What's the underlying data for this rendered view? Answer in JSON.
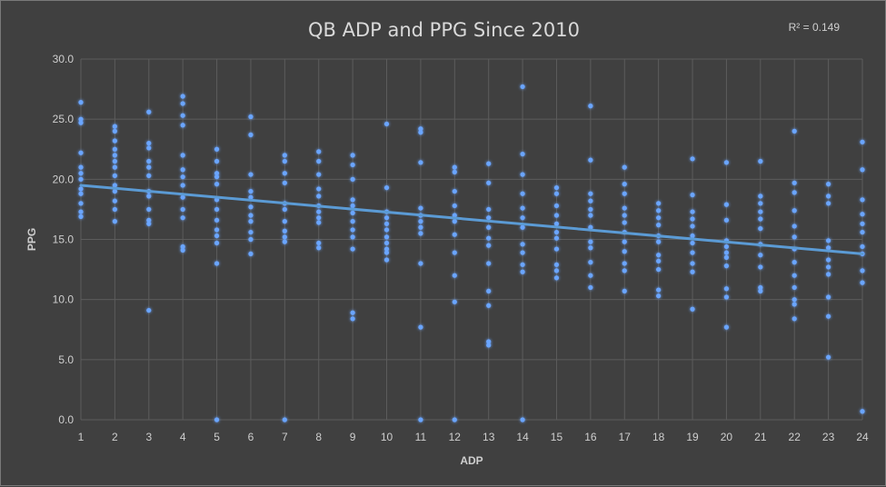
{
  "chart_data": {
    "type": "scatter",
    "title": "QB ADP and PPG Since 2010",
    "annotation": "R² = 0.149",
    "xlabel": "ADP",
    "ylabel": "PPG",
    "xlim": [
      1,
      24
    ],
    "ylim": [
      0,
      30
    ],
    "x_ticks": [
      "1",
      "2",
      "3",
      "4",
      "5",
      "6",
      "7",
      "8",
      "9",
      "10",
      "11",
      "12",
      "13",
      "14",
      "15",
      "16",
      "17",
      "18",
      "19",
      "20",
      "21",
      "22",
      "23",
      "24"
    ],
    "y_ticks": [
      "0.0",
      "5.0",
      "10.0",
      "15.0",
      "20.0",
      "25.0",
      "30.0"
    ],
    "grid": true,
    "trendline": {
      "x": [
        1,
        24
      ],
      "y": [
        19.5,
        13.8
      ]
    },
    "series": [
      {
        "color": "#6aa5ff",
        "points": [
          [
            1,
            26.4
          ],
          [
            1,
            25.0
          ],
          [
            1,
            24.7
          ],
          [
            1,
            22.2
          ],
          [
            1,
            21.0
          ],
          [
            1,
            20.5
          ],
          [
            1,
            20.0
          ],
          [
            1,
            19.2
          ],
          [
            1,
            18.8
          ],
          [
            1,
            18.0
          ],
          [
            1,
            17.3
          ],
          [
            1,
            16.9
          ],
          [
            2,
            24.4
          ],
          [
            2,
            24.0
          ],
          [
            2,
            23.2
          ],
          [
            2,
            22.5
          ],
          [
            2,
            22.0
          ],
          [
            2,
            21.5
          ],
          [
            2,
            21.0
          ],
          [
            2,
            20.3
          ],
          [
            2,
            19.5
          ],
          [
            2,
            19.0
          ],
          [
            2,
            18.2
          ],
          [
            2,
            17.5
          ],
          [
            2,
            16.5
          ],
          [
            3,
            25.6
          ],
          [
            3,
            23.0
          ],
          [
            3,
            22.6
          ],
          [
            3,
            21.5
          ],
          [
            3,
            21.0
          ],
          [
            3,
            20.3
          ],
          [
            3,
            19.0
          ],
          [
            3,
            18.6
          ],
          [
            3,
            17.5
          ],
          [
            3,
            16.6
          ],
          [
            3,
            16.3
          ],
          [
            3,
            9.1
          ],
          [
            4,
            26.9
          ],
          [
            4,
            26.3
          ],
          [
            4,
            25.3
          ],
          [
            4,
            24.5
          ],
          [
            4,
            22.0
          ],
          [
            4,
            20.8
          ],
          [
            4,
            20.2
          ],
          [
            4,
            19.5
          ],
          [
            4,
            18.5
          ],
          [
            4,
            17.5
          ],
          [
            4,
            16.8
          ],
          [
            4,
            14.4
          ],
          [
            4,
            14.1
          ],
          [
            5,
            22.5
          ],
          [
            5,
            21.5
          ],
          [
            5,
            20.5
          ],
          [
            5,
            20.2
          ],
          [
            5,
            19.6
          ],
          [
            5,
            18.3
          ],
          [
            5,
            17.5
          ],
          [
            5,
            16.6
          ],
          [
            5,
            15.8
          ],
          [
            5,
            15.3
          ],
          [
            5,
            14.7
          ],
          [
            5,
            13.0
          ],
          [
            5,
            0.0
          ],
          [
            6,
            25.2
          ],
          [
            6,
            23.7
          ],
          [
            6,
            20.4
          ],
          [
            6,
            19.0
          ],
          [
            6,
            18.5
          ],
          [
            6,
            17.7
          ],
          [
            6,
            17.0
          ],
          [
            6,
            16.5
          ],
          [
            6,
            15.6
          ],
          [
            6,
            15.0
          ],
          [
            6,
            13.8
          ],
          [
            7,
            22.0
          ],
          [
            7,
            21.5
          ],
          [
            7,
            20.5
          ],
          [
            7,
            19.7
          ],
          [
            7,
            18.0
          ],
          [
            7,
            17.5
          ],
          [
            7,
            16.5
          ],
          [
            7,
            15.7
          ],
          [
            7,
            15.2
          ],
          [
            7,
            14.8
          ],
          [
            7,
            0.0
          ],
          [
            8,
            22.3
          ],
          [
            8,
            21.5
          ],
          [
            8,
            20.4
          ],
          [
            8,
            19.2
          ],
          [
            8,
            18.6
          ],
          [
            8,
            17.8
          ],
          [
            8,
            17.3
          ],
          [
            8,
            16.8
          ],
          [
            8,
            16.4
          ],
          [
            8,
            14.7
          ],
          [
            8,
            14.3
          ],
          [
            9,
            22.0
          ],
          [
            9,
            21.2
          ],
          [
            9,
            20.0
          ],
          [
            9,
            18.3
          ],
          [
            9,
            17.8
          ],
          [
            9,
            17.2
          ],
          [
            9,
            16.5
          ],
          [
            9,
            15.8
          ],
          [
            9,
            15.2
          ],
          [
            9,
            14.2
          ],
          [
            9,
            8.9
          ],
          [
            9,
            8.4
          ],
          [
            10,
            24.6
          ],
          [
            10,
            19.3
          ],
          [
            10,
            17.3
          ],
          [
            10,
            16.8
          ],
          [
            10,
            16.3
          ],
          [
            10,
            15.8
          ],
          [
            10,
            15.2
          ],
          [
            10,
            14.7
          ],
          [
            10,
            14.2
          ],
          [
            10,
            13.9
          ],
          [
            10,
            13.3
          ],
          [
            11,
            24.2
          ],
          [
            11,
            23.9
          ],
          [
            11,
            21.4
          ],
          [
            11,
            17.6
          ],
          [
            11,
            17.0
          ],
          [
            11,
            16.5
          ],
          [
            11,
            16.0
          ],
          [
            11,
            15.5
          ],
          [
            11,
            13.0
          ],
          [
            11,
            7.7
          ],
          [
            11,
            0.0
          ],
          [
            12,
            21.0
          ],
          [
            12,
            20.6
          ],
          [
            12,
            19.0
          ],
          [
            12,
            17.8
          ],
          [
            12,
            17.0
          ],
          [
            12,
            16.5
          ],
          [
            12,
            15.4
          ],
          [
            12,
            13.9
          ],
          [
            12,
            12.0
          ],
          [
            12,
            9.8
          ],
          [
            12,
            0.0
          ],
          [
            13,
            21.3
          ],
          [
            13,
            19.7
          ],
          [
            13,
            17.5
          ],
          [
            13,
            16.8
          ],
          [
            13,
            16.0
          ],
          [
            13,
            15.1
          ],
          [
            13,
            14.5
          ],
          [
            13,
            13.0
          ],
          [
            13,
            10.7
          ],
          [
            13,
            9.5
          ],
          [
            13,
            6.5
          ],
          [
            13,
            6.2
          ],
          [
            14,
            27.7
          ],
          [
            14,
            22.1
          ],
          [
            14,
            20.4
          ],
          [
            14,
            18.8
          ],
          [
            14,
            17.6
          ],
          [
            14,
            16.8
          ],
          [
            14,
            16.0
          ],
          [
            14,
            14.6
          ],
          [
            14,
            13.9
          ],
          [
            14,
            12.9
          ],
          [
            14,
            12.3
          ],
          [
            14,
            0.0
          ],
          [
            15,
            19.3
          ],
          [
            15,
            18.8
          ],
          [
            15,
            17.8
          ],
          [
            15,
            17.0
          ],
          [
            15,
            16.3
          ],
          [
            15,
            15.6
          ],
          [
            15,
            15.1
          ],
          [
            15,
            14.2
          ],
          [
            15,
            12.9
          ],
          [
            15,
            12.4
          ],
          [
            15,
            11.8
          ],
          [
            16,
            26.1
          ],
          [
            16,
            21.6
          ],
          [
            16,
            18.8
          ],
          [
            16,
            18.2
          ],
          [
            16,
            17.5
          ],
          [
            16,
            17.0
          ],
          [
            16,
            16.0
          ],
          [
            16,
            14.8
          ],
          [
            16,
            14.3
          ],
          [
            16,
            13.1
          ],
          [
            16,
            12.0
          ],
          [
            16,
            11.0
          ],
          [
            17,
            21.0
          ],
          [
            17,
            19.6
          ],
          [
            17,
            18.8
          ],
          [
            17,
            17.6
          ],
          [
            17,
            17.0
          ],
          [
            17,
            16.4
          ],
          [
            17,
            15.6
          ],
          [
            17,
            14.8
          ],
          [
            17,
            14.0
          ],
          [
            17,
            13.0
          ],
          [
            17,
            12.4
          ],
          [
            17,
            10.7
          ],
          [
            18,
            18.0
          ],
          [
            18,
            17.4
          ],
          [
            18,
            16.8
          ],
          [
            18,
            16.2
          ],
          [
            18,
            15.3
          ],
          [
            18,
            14.8
          ],
          [
            18,
            13.7
          ],
          [
            18,
            13.2
          ],
          [
            18,
            12.5
          ],
          [
            18,
            10.8
          ],
          [
            18,
            10.3
          ],
          [
            19,
            21.7
          ],
          [
            19,
            18.7
          ],
          [
            19,
            17.3
          ],
          [
            19,
            16.7
          ],
          [
            19,
            16.1
          ],
          [
            19,
            15.3
          ],
          [
            19,
            14.7
          ],
          [
            19,
            13.9
          ],
          [
            19,
            13.0
          ],
          [
            19,
            12.3
          ],
          [
            19,
            9.2
          ],
          [
            20,
            21.4
          ],
          [
            20,
            17.9
          ],
          [
            20,
            16.6
          ],
          [
            20,
            14.9
          ],
          [
            20,
            14.4
          ],
          [
            20,
            13.9
          ],
          [
            20,
            13.5
          ],
          [
            20,
            12.8
          ],
          [
            20,
            10.9
          ],
          [
            20,
            10.2
          ],
          [
            20,
            7.7
          ],
          [
            21,
            21.5
          ],
          [
            21,
            18.6
          ],
          [
            21,
            18.0
          ],
          [
            21,
            17.3
          ],
          [
            21,
            16.7
          ],
          [
            21,
            15.9
          ],
          [
            21,
            14.6
          ],
          [
            21,
            13.7
          ],
          [
            21,
            12.7
          ],
          [
            21,
            11.0
          ],
          [
            21,
            10.7
          ],
          [
            22,
            24.0
          ],
          [
            22,
            19.7
          ],
          [
            22,
            18.9
          ],
          [
            22,
            17.4
          ],
          [
            22,
            16.1
          ],
          [
            22,
            15.2
          ],
          [
            22,
            14.2
          ],
          [
            22,
            13.1
          ],
          [
            22,
            12.0
          ],
          [
            22,
            11.0
          ],
          [
            22,
            10.0
          ],
          [
            22,
            9.6
          ],
          [
            22,
            8.4
          ],
          [
            23,
            19.6
          ],
          [
            23,
            18.6
          ],
          [
            23,
            18.0
          ],
          [
            23,
            14.9
          ],
          [
            23,
            14.3
          ],
          [
            23,
            13.3
          ],
          [
            23,
            12.7
          ],
          [
            23,
            12.1
          ],
          [
            23,
            10.2
          ],
          [
            23,
            8.6
          ],
          [
            23,
            5.2
          ],
          [
            24,
            23.1
          ],
          [
            24,
            20.8
          ],
          [
            24,
            18.3
          ],
          [
            24,
            17.1
          ],
          [
            24,
            16.3
          ],
          [
            24,
            15.6
          ],
          [
            24,
            14.4
          ],
          [
            24,
            13.8
          ],
          [
            24,
            12.4
          ],
          [
            24,
            11.4
          ],
          [
            24,
            0.7
          ]
        ]
      }
    ]
  }
}
